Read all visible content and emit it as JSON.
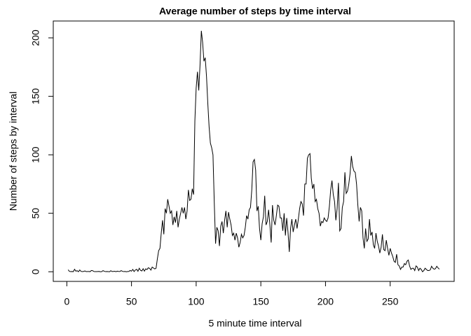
{
  "chart_data": {
    "type": "line",
    "title": "Average number of steps by time interval",
    "x_label": "5 minute time interval",
    "y_label": "Number of steps by interval",
    "xlim": [
      -10.48,
      299.48
    ],
    "ylim": [
      -8.25,
      214.4
    ],
    "xticks": [
      0,
      50,
      100,
      150,
      200,
      250
    ],
    "yticks": [
      0,
      50,
      100,
      150,
      200
    ],
    "series": [
      {
        "color": "#000000",
        "x": [
          1,
          2,
          3,
          4,
          5,
          6,
          7,
          8,
          9,
          10,
          11,
          12,
          13,
          14,
          15,
          16,
          17,
          18,
          19,
          20,
          21,
          22,
          23,
          24,
          25,
          26,
          27,
          28,
          29,
          30,
          31,
          32,
          33,
          34,
          35,
          36,
          37,
          38,
          39,
          40,
          41,
          42,
          43,
          44,
          45,
          46,
          47,
          48,
          49,
          50,
          51,
          52,
          53,
          54,
          55,
          56,
          57,
          58,
          59,
          60,
          61,
          62,
          63,
          64,
          65,
          66,
          67,
          68,
          69,
          70,
          71,
          72,
          73,
          74,
          75,
          76,
          77,
          78,
          79,
          80,
          81,
          82,
          83,
          84,
          85,
          86,
          87,
          88,
          89,
          90,
          91,
          92,
          93,
          94,
          95,
          96,
          97,
          98,
          99,
          100,
          101,
          102,
          103,
          104,
          105,
          106,
          107,
          108,
          109,
          110,
          111,
          112,
          113,
          114,
          115,
          116,
          117,
          118,
          119,
          120,
          121,
          122,
          123,
          124,
          125,
          126,
          127,
          128,
          129,
          130,
          131,
          132,
          133,
          134,
          135,
          136,
          137,
          138,
          139,
          140,
          141,
          142,
          143,
          144,
          145,
          146,
          147,
          148,
          149,
          150,
          151,
          152,
          153,
          154,
          155,
          156,
          157,
          158,
          159,
          160,
          161,
          162,
          163,
          164,
          165,
          166,
          167,
          168,
          169,
          170,
          171,
          172,
          173,
          174,
          175,
          176,
          177,
          178,
          179,
          180,
          181,
          182,
          183,
          184,
          185,
          186,
          187,
          188,
          189,
          190,
          191,
          192,
          193,
          194,
          195,
          196,
          197,
          198,
          199,
          200,
          201,
          202,
          203,
          204,
          205,
          206,
          207,
          208,
          209,
          210,
          211,
          212,
          213,
          214,
          215,
          216,
          217,
          218,
          219,
          220,
          221,
          222,
          223,
          224,
          225,
          226,
          227,
          228,
          229,
          230,
          231,
          232,
          233,
          234,
          235,
          236,
          237,
          238,
          239,
          240,
          241,
          242,
          243,
          244,
          245,
          246,
          247,
          248,
          249,
          250,
          251,
          252,
          253,
          254,
          255,
          256,
          257,
          258,
          259,
          260,
          261,
          262,
          263,
          264,
          265,
          266,
          267,
          268,
          269,
          270,
          271,
          272,
          273,
          274,
          275,
          276,
          277,
          278,
          279,
          280,
          281,
          282,
          283,
          284,
          285,
          286,
          287,
          288
        ],
        "values": [
          1.7,
          0.3,
          0.1,
          0.2,
          0.1,
          2.1,
          0.5,
          0.9,
          0,
          1.5,
          0.3,
          0.1,
          0.3,
          0.7,
          0.1,
          0.2,
          0.2,
          0.1,
          1.1,
          0.9,
          0.2,
          0.1,
          0.1,
          0.2,
          0.3,
          0,
          0.1,
          1.0,
          0.4,
          0.1,
          0.2,
          0.1,
          0,
          0.9,
          0.2,
          0.3,
          0.4,
          0.1,
          0.5,
          0.3,
          0.2,
          1.0,
          0.4,
          0.1,
          0.3,
          0,
          0.2,
          0.3,
          1.1,
          0.5,
          2.0,
          0.2,
          1.5,
          2.1,
          0.4,
          3.0,
          1.2,
          0.7,
          2.6,
          0.5,
          2.5,
          1.9,
          3.4,
          2.9,
          1.4,
          4.0,
          3.2,
          2.4,
          3.0,
          11,
          18,
          20,
          33,
          44,
          32,
          54,
          50,
          62,
          56,
          50,
          52,
          40,
          47,
          42,
          52,
          38,
          45,
          50,
          55,
          50,
          55,
          45,
          52,
          70,
          61,
          62,
          71,
          66,
          129,
          157,
          171,
          155,
          177,
          206,
          196,
          180,
          183,
          167,
          144,
          124,
          110,
          106,
          100,
          59,
          24,
          38,
          35,
          22,
          39,
          43,
          33,
          44,
          52,
          38,
          51,
          45,
          40,
          31,
          33,
          27,
          33,
          29,
          21,
          25,
          32,
          29,
          31,
          38,
          48,
          45,
          53,
          55,
          70,
          94,
          96,
          87,
          52,
          56,
          37,
          27,
          41,
          47,
          65,
          40,
          43,
          53,
          40,
          25,
          57,
          44,
          40,
          48,
          57,
          56,
          46,
          46,
          35,
          50,
          31,
          46,
          34,
          17,
          37,
          45,
          34,
          40,
          45,
          37,
          45,
          54,
          60,
          58,
          48,
          75,
          75,
          97,
          100,
          101,
          80,
          71,
          75,
          60,
          62,
          54,
          50,
          39,
          43,
          42,
          46,
          44,
          43,
          46,
          56,
          70,
          78,
          66,
          60,
          44,
          54,
          76,
          35,
          37,
          55,
          60,
          85,
          67,
          69,
          75,
          84,
          99,
          90,
          86,
          85,
          75,
          57,
          43,
          55,
          52,
          29,
          20,
          37,
          26,
          28,
          45,
          31,
          34,
          23,
          20,
          33,
          26,
          22,
          16,
          21,
          32,
          19,
          18,
          27,
          20,
          14,
          20,
          16,
          13,
          9,
          8,
          15,
          6,
          5,
          2,
          4,
          4,
          7,
          6,
          9,
          10,
          5,
          2,
          3,
          3,
          1,
          5,
          4,
          1,
          3,
          2,
          0,
          1,
          3,
          2,
          1,
          1,
          1.6,
          4.7,
          3.0,
          2.2,
          2.6,
          4.7,
          3.3,
          2.2
        ]
      }
    ]
  }
}
